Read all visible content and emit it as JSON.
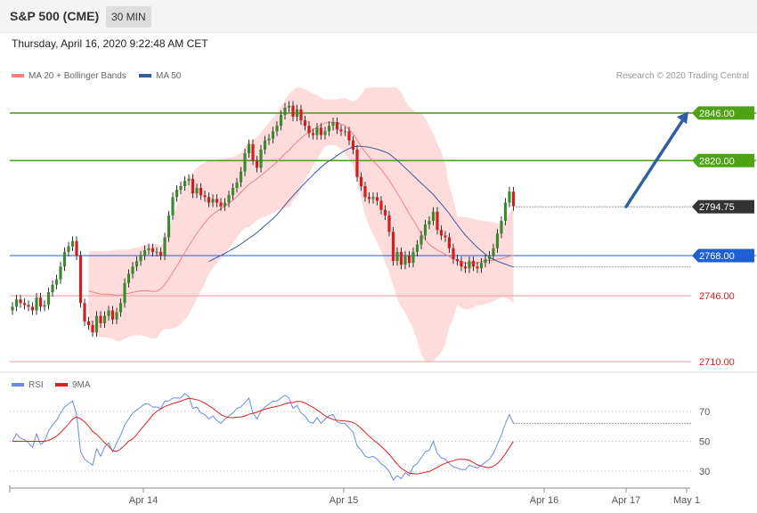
{
  "header": {
    "title": "S&P 500 (CME)",
    "timeframe": "30 MIN"
  },
  "date_text": "Thursday, April 16, 2020 9:22:48 AM CET",
  "legend": {
    "ma20_label": "MA 20 + Bollinger Bands",
    "ma50_label": "MA 50",
    "credit": "Research © 2020 Trading Central"
  },
  "rsi_legend": {
    "rsi_label": "RSI",
    "ma9_label": "9MA"
  },
  "colors": {
    "candle_up": "#3c8a30",
    "candle_down": "#d21e1e",
    "bollinger": "#ffd6d6",
    "ma20": "#f08080",
    "ma50": "#3a5a9c",
    "resistance": "#4ca314",
    "pivot": "#1f5fd6",
    "support": "#f29b9b",
    "arrow": "#2f5fa0",
    "rsi": "#6b8be0",
    "rsi_ma": "#e02020"
  },
  "chart_data": [
    {
      "type": "candlestick",
      "title": "S&P 500 (CME)",
      "timeframe": "30 MIN",
      "x_tick_labels": [
        "Apr 14",
        "Apr 15",
        "Apr 16",
        "Apr 17",
        "May 1"
      ],
      "ylim": [
        2700,
        2860
      ],
      "levels": [
        {
          "kind": "resistance",
          "label": "2846.00",
          "value": 2846
        },
        {
          "kind": "resistance",
          "label": "2820.00",
          "value": 2820
        },
        {
          "kind": "last",
          "label": "2794.75",
          "value": 2794.75
        },
        {
          "kind": "pivot",
          "label": "2768.00",
          "value": 2768
        },
        {
          "kind": "support",
          "label": "2746.00",
          "value": 2746
        },
        {
          "kind": "support",
          "label": "2710.00",
          "value": 2710
        }
      ],
      "close": [
        2740,
        2744,
        2742,
        2741,
        2740,
        2738,
        2745,
        2740,
        2741,
        2748,
        2752,
        2755,
        2762,
        2770,
        2773,
        2776,
        2768,
        2742,
        2732,
        2730,
        2726,
        2735,
        2731,
        2735,
        2738,
        2733,
        2737,
        2742,
        2753,
        2758,
        2762,
        2765,
        2768,
        2771,
        2772,
        2770,
        2770,
        2768,
        2778,
        2790,
        2800,
        2804,
        2806,
        2809,
        2810,
        2802,
        2805,
        2801,
        2800,
        2797,
        2799,
        2797,
        2795,
        2797,
        2801,
        2805,
        2808,
        2814,
        2824,
        2829,
        2820,
        2816,
        2826,
        2831,
        2832,
        2836,
        2839,
        2845,
        2849,
        2850,
        2844,
        2848,
        2842,
        2839,
        2835,
        2834,
        2838,
        2834,
        2836,
        2839,
        2841,
        2837,
        2836,
        2836,
        2831,
        2826,
        2811,
        2806,
        2800,
        2799,
        2800,
        2798,
        2793,
        2790,
        2781,
        2765,
        2770,
        2763,
        2768,
        2764,
        2770,
        2774,
        2779,
        2785,
        2787,
        2792,
        2782,
        2779,
        2778,
        2772,
        2766,
        2765,
        2762,
        2761,
        2765,
        2762,
        2761,
        2764,
        2766,
        2768,
        2772,
        2780,
        2787,
        2797,
        2803,
        2795
      ],
      "ma20": [
        null,
        null,
        null,
        null,
        null,
        null,
        null,
        null,
        null,
        null,
        null,
        null,
        null,
        null,
        null,
        null,
        null,
        null,
        null,
        2748.7,
        2748.0,
        2747.5,
        2747.0,
        2746.9,
        2746.8,
        2746.6,
        2746.2,
        2746.3,
        2746.9,
        2747.4,
        2747.9,
        2748.4,
        2748.7,
        2748.8,
        2748.7,
        2748.4,
        2748.5,
        2749.8,
        2752.1,
        2755.1,
        2758.8,
        2762.2,
        2766.0,
        2769.7,
        2773.3,
        2776.7,
        2780.1,
        2783.1,
        2785.9,
        2788.6,
        2790.6,
        2792.2,
        2793.6,
        2795.0,
        2796.6,
        2798.4,
        2800.3,
        2802.6,
        2804.9,
        2806.9,
        2808.5,
        2810.1,
        2811.8,
        2813.6,
        2815.5,
        2817.3,
        2819.2,
        2821.4,
        2823.8,
        2825.5,
        2828.1,
        2830.2,
        2832.2,
        2834.1,
        2835.4,
        2836.9,
        2838.1,
        2839.5,
        2840.5,
        2840.9,
        2840.9,
        2840.7,
        2840.0,
        2839.0,
        2837.0,
        2834.6,
        2831.3,
        2827.7,
        2824.7,
        2822.0,
        2819.7,
        2817.6,
        2815.1,
        2812.2,
        2809.3,
        2805.7,
        2802.3,
        2798.6,
        2794.8,
        2791.0,
        2787.5,
        2783.8,
        2779.9,
        2776.7,
        2774.1,
        2772.5,
        2771.0,
        2769.9,
        2768.6,
        2767.5,
        2766.4,
        2765.3,
        2764.3,
        2763.8,
        2763.8,
        2764.0,
        2764.0,
        2764.7,
        2765.1,
        2765.4,
        2765.6,
        2766.0,
        2766.3,
        2766.9,
        2767.7,
        2768.1
      ],
      "bb_upper": [
        null,
        null,
        null,
        null,
        null,
        null,
        null,
        null,
        null,
        null,
        null,
        null,
        null,
        null,
        null,
        null,
        null,
        null,
        null,
        2770.3,
        2770.4,
        2770.3,
        2770.6,
        2770.5,
        2770.5,
        2770.8,
        2771.3,
        2771.3,
        2771.2,
        2771.4,
        2771.8,
        2772.4,
        2773.0,
        2773.6,
        2774.3,
        2774.2,
        2774.3,
        2773.5,
        2776.4,
        2782.4,
        2789.4,
        2795.6,
        2801.4,
        2806.5,
        2811.0,
        2813.7,
        2816.0,
        2817.7,
        2818.9,
        2819.6,
        2819.9,
        2820.5,
        2820.8,
        2821.2,
        2821.5,
        2822.1,
        2823.0,
        2824.2,
        2826.7,
        2830.2,
        2831.5,
        2832.9,
        2835.1,
        2838.0,
        2840.8,
        2843.3,
        2846.0,
        2849.4,
        2853.4,
        2856.6,
        2858.2,
        2860.0,
        2859.8,
        2858.8,
        2857.8,
        2856.6,
        2855.8,
        2854.4,
        2853.4,
        2853.5,
        2853.4,
        2853.6,
        2853.8,
        2854.2,
        2853.1,
        2852.4,
        2853.3,
        2855.9,
        2859.3,
        2860.0,
        2860.0,
        2860.0,
        2860.0,
        2860.0,
        2860.0,
        2860.0,
        2860.0,
        2857.3,
        2852.9,
        2849.5,
        2847.5,
        2846.0,
        2845.8,
        2843.2,
        2838.7,
        2834.9,
        2829.5,
        2824.6,
        2817.8,
        2806.1,
        2799.2,
        2789.4,
        2789.2,
        2789.0,
        2788.8,
        2788.3,
        2787.3,
        2787.2,
        2786.7,
        2786.5,
        2786.3,
        2785.9,
        2785.4,
        2786.7,
        2791.4,
        2794.1
      ],
      "bb_lower": [
        null,
        null,
        null,
        null,
        null,
        null,
        null,
        null,
        null,
        null,
        null,
        null,
        null,
        null,
        null,
        null,
        null,
        null,
        null,
        2727.1,
        2725.6,
        2724.7,
        2723.4,
        2723.3,
        2723.1,
        2722.4,
        2721.1,
        2721.3,
        2722.6,
        2723.4,
        2724.0,
        2724.4,
        2724.4,
        2724.0,
        2723.1,
        2722.6,
        2722.7,
        2726.1,
        2727.8,
        2727.8,
        2728.2,
        2728.8,
        2730.6,
        2732.9,
        2735.6,
        2739.7,
        2744.2,
        2748.5,
        2752.9,
        2757.6,
        2761.3,
        2763.9,
        2766.4,
        2768.8,
        2771.7,
        2774.7,
        2777.6,
        2781.0,
        2783.1,
        2783.6,
        2785.5,
        2787.3,
        2788.5,
        2789.2,
        2790.2,
        2791.3,
        2792.4,
        2793.4,
        2794.2,
        2794.4,
        2798.0,
        2800.4,
        2804.6,
        2809.4,
        2813.0,
        2817.2,
        2820.4,
        2824.6,
        2827.6,
        2828.3,
        2828.4,
        2827.8,
        2826.2,
        2823.8,
        2820.9,
        2816.8,
        2809.3,
        2799.5,
        2790.1,
        2784.0,
        2779.4,
        2775.2,
        2770.2,
        2764.4,
        2758.6,
        2751.4,
        2744.6,
        2739.9,
        2736.7,
        2732.5,
        2727.5,
        2721.6,
        2714.0,
        2710.2,
        2709.5,
        2710.1,
        2712.5,
        2715.2,
        2719.4,
        2728.9,
        2733.6,
        2741.2,
        2739.4,
        2738.6,
        2738.8,
        2739.7,
        2740.7,
        2740.8,
        2741.5,
        2742.3,
        2742.9,
        2744.1,
        2745.2,
        2745.1,
        2744.0,
        2742.1
      ],
      "ma50": [
        null,
        null,
        null,
        null,
        null,
        null,
        null,
        null,
        null,
        null,
        null,
        null,
        null,
        null,
        null,
        null,
        null,
        null,
        null,
        null,
        null,
        null,
        null,
        null,
        null,
        null,
        null,
        null,
        null,
        null,
        null,
        null,
        null,
        null,
        null,
        null,
        null,
        null,
        null,
        null,
        null,
        null,
        null,
        null,
        null,
        null,
        null,
        null,
        null,
        2764.7,
        2765.9,
        2767.0,
        2768.1,
        2769.2,
        2770.4,
        2771.7,
        2772.9,
        2774.3,
        2775.9,
        2777.5,
        2778.9,
        2780.6,
        2782.5,
        2784.5,
        2786.3,
        2788.2,
        2790.4,
        2792.9,
        2795.6,
        2798.2,
        2800.7,
        2803.1,
        2805.4,
        2807.8,
        2810.0,
        2812.2,
        2814.3,
        2816.4,
        2818.3,
        2819.8,
        2821.0,
        2822.7,
        2824.2,
        2825.5,
        2826.6,
        2827.5,
        2827.8,
        2827.8,
        2827.6,
        2827.3,
        2826.8,
        2826.2,
        2825.5,
        2824.7,
        2823.7,
        2821.9,
        2820.2,
        2818.1,
        2816.0,
        2813.9,
        2811.8,
        2809.7,
        2807.6,
        2805.6,
        2803.5,
        2801.4,
        2798.8,
        2796.3,
        2793.7,
        2790.9,
        2787.8,
        2784.8,
        2781.9,
        2779.2,
        2776.9,
        2774.6,
        2772.5,
        2770.5,
        2768.8,
        2767.2,
        2765.9,
        2764.9,
        2764.1,
        2763.3,
        2762.5,
        2761.8
      ],
      "rsi_ylim": [
        10,
        90
      ],
      "rsi_gridlines": [
        70,
        50,
        30
      ],
      "rsi": [
        50,
        55,
        52,
        51,
        49,
        46,
        55,
        48,
        50,
        57,
        61,
        64,
        69,
        73,
        75,
        77,
        68,
        43,
        38,
        36,
        34,
        45,
        40,
        46,
        49,
        43,
        49,
        54,
        61,
        65,
        69,
        71,
        73,
        75,
        75,
        73,
        73,
        72,
        77,
        77,
        79,
        79,
        79,
        82,
        80,
        72,
        73,
        69,
        68,
        65,
        67,
        64,
        62,
        65,
        67,
        69,
        72,
        73,
        76,
        79,
        69,
        65,
        70,
        73,
        75,
        77,
        77,
        79,
        81,
        79,
        72,
        74,
        69,
        67,
        63,
        62,
        66,
        62,
        65,
        67,
        68,
        63,
        62,
        62,
        59,
        56,
        47,
        44,
        40,
        39,
        40,
        38,
        35,
        33,
        30,
        24,
        27,
        25,
        29,
        27,
        33,
        35,
        39,
        43,
        44,
        50,
        42,
        39,
        38,
        35,
        33,
        32,
        31,
        31,
        34,
        33,
        32,
        34,
        36,
        38,
        42,
        48,
        54,
        62,
        68,
        62
      ],
      "rsi_ma": [
        50,
        50,
        50,
        50,
        50,
        50,
        50,
        50,
        50,
        50.6,
        51.8,
        53.4,
        55.9,
        58.6,
        61.6,
        65.0,
        66.3,
        65.1,
        63.1,
        60.2,
        56.6,
        54.6,
        51.9,
        49.0,
        46.8,
        43.7,
        43.2,
        44.9,
        47.3,
        50.1,
        51.6,
        54.4,
        57.9,
        61.0,
        64.3,
        67.7,
        70.0,
        71.7,
        73.4,
        74.3,
        75.4,
        76.0,
        76.8,
        78.0,
        78.8,
        78.4,
        77.9,
        76.9,
        75.6,
        73.8,
        72.1,
        70.0,
        68.0,
        66.6,
        66.0,
        65.8,
        66.2,
        66.3,
        67.0,
        68.1,
        68.8,
        69.4,
        70.6,
        71.5,
        72.3,
        72.8,
        73.4,
        74.2,
        75.1,
        75.9,
        76.0,
        76.8,
        76.6,
        75.8,
        74.1,
        72.8,
        71.0,
        69.1,
        67.1,
        65.7,
        64.6,
        64.1,
        63.8,
        63.7,
        63.3,
        62.6,
        61.0,
        58.7,
        56.0,
        53.4,
        51.0,
        48.9,
        46.6,
        44.1,
        41.3,
        37.9,
        34.8,
        31.9,
        30.2,
        28.6,
        28.3,
        28.1,
        28.6,
        29.2,
        29.7,
        31.1,
        32.5,
        34.1,
        35.2,
        36.2,
        37.0,
        37.8,
        37.9,
        37.9,
        37.2,
        35.8,
        34.2,
        33.4,
        32.7,
        32.3,
        33.2,
        35.1,
        37.9,
        41.6,
        45.8,
        49.8
      ]
    }
  ]
}
